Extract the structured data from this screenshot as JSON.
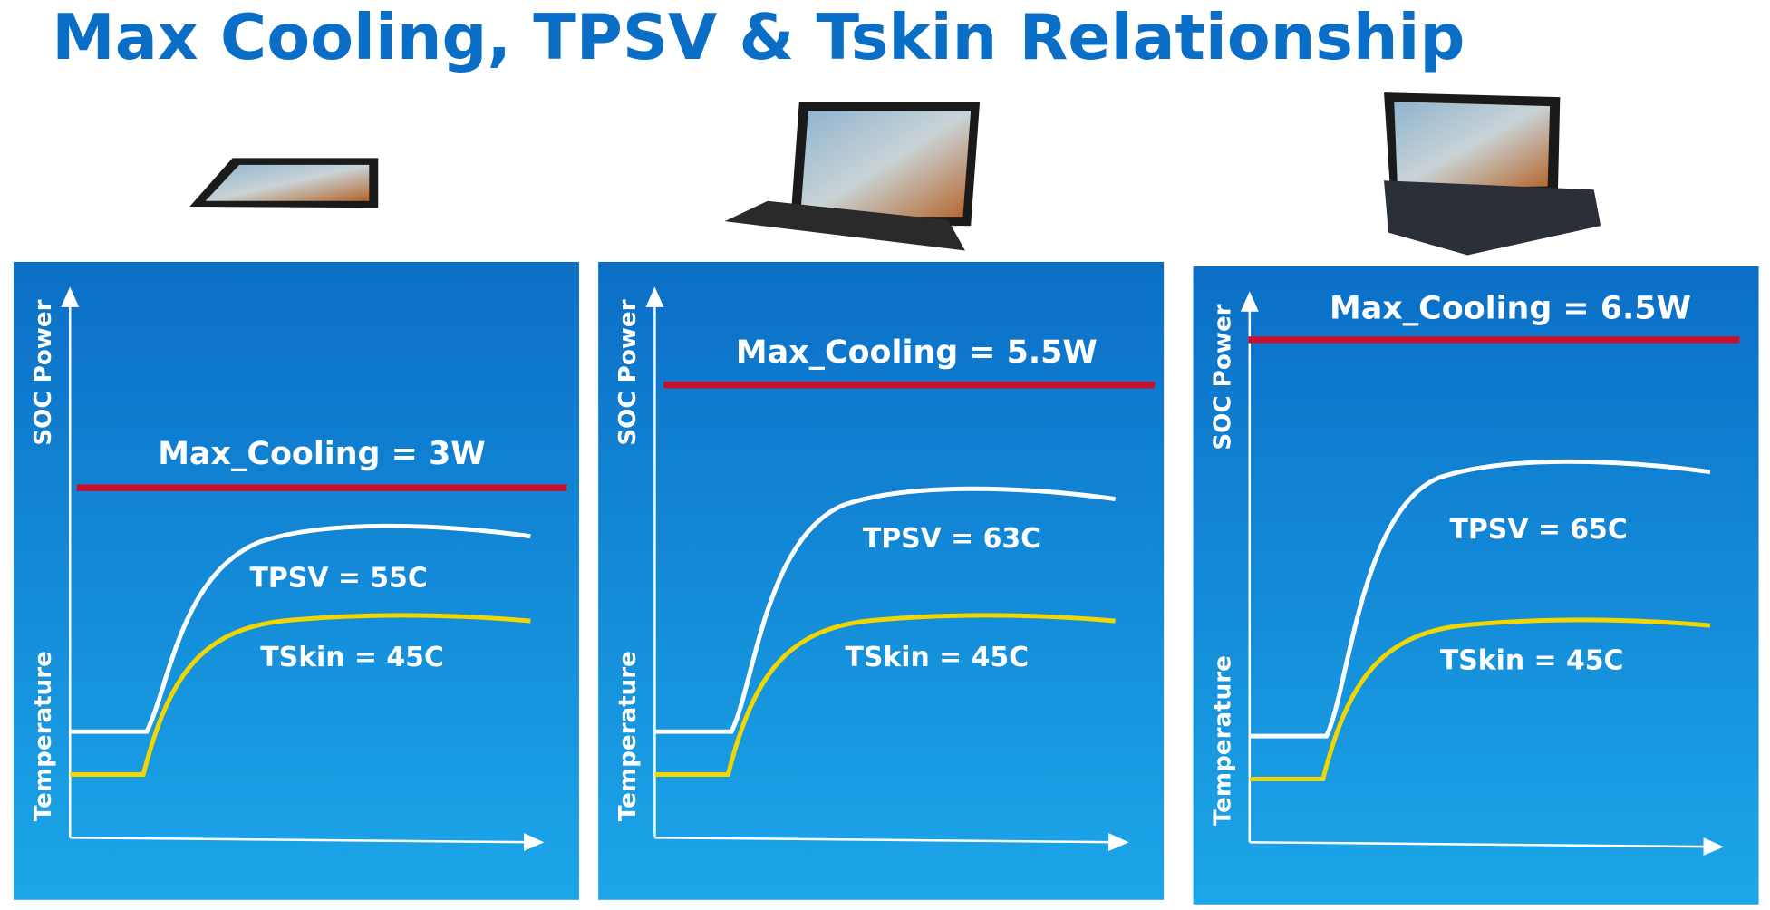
{
  "title": "Max Cooling, TPSV & Tskin Relationship",
  "panels": [
    {
      "y_axis_top": "SOC Power",
      "y_axis_bottom": "Temperature",
      "max_cooling": "Max_Cooling = 3W",
      "tpsv": "TPSV = 55C",
      "tskin": "TSkin = 45C"
    },
    {
      "y_axis_top": "SOC Power",
      "y_axis_bottom": "Temperature",
      "max_cooling": "Max_Cooling = 5.5W",
      "tpsv": "TPSV = 63C",
      "tskin": "TSkin = 45C"
    },
    {
      "y_axis_top": "SOC Power",
      "y_axis_bottom": "Temperature",
      "max_cooling": "Max_Cooling = 6.5W",
      "tpsv": "TPSV = 65C",
      "tskin": "TSkin = 45C"
    }
  ]
}
